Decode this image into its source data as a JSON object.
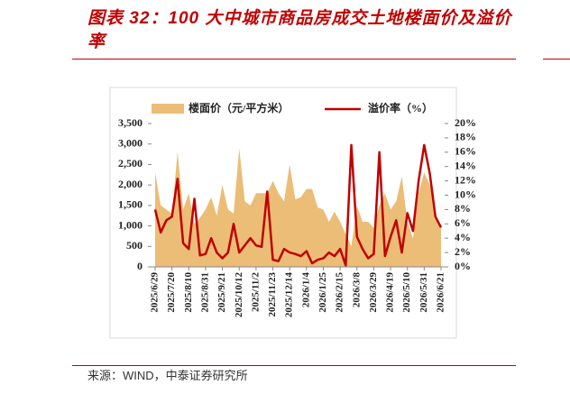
{
  "chart_data": {
    "type": "area-line",
    "title": "图表 32：100 大中城市商品房成交土地楼面价及溢价率",
    "source": "来源：WIND，中泰证券研究所",
    "categories": [
      "2025/6/29",
      null,
      null,
      "2025/7/20",
      null,
      null,
      "2025/8/10",
      null,
      null,
      "2025/8/31",
      null,
      null,
      "2025/9/21",
      null,
      null,
      "2025/10/12",
      null,
      null,
      "2025/11/2",
      null,
      null,
      "2025/11/23",
      null,
      null,
      "2025/12/14",
      null,
      null,
      "2026/1/4",
      null,
      null,
      "2026/1/25",
      null,
      null,
      "2026/2/15",
      null,
      null,
      "2026/3/8",
      null,
      null,
      "2026/3/29",
      null,
      null,
      "2026/4/19",
      null,
      null,
      "2026/5/10",
      null,
      null,
      "2026/5/31",
      null,
      null,
      "2026/6/21"
    ],
    "series": [
      {
        "name": "楼面价（元/平方米）",
        "color": "#ebbd76",
        "axis": "y",
        "values": [
          2300,
          1500,
          1400,
          1300,
          2800,
          1400,
          1800,
          1050,
          1200,
          1400,
          1700,
          1250,
          2000,
          1400,
          1300,
          2900,
          1600,
          1500,
          1800,
          1800,
          1800,
          2100,
          1800,
          1600,
          2500,
          1650,
          1700,
          1900,
          1900,
          1450,
          1400,
          1100,
          1350,
          1100,
          800,
          500,
          1500,
          1100,
          1100,
          950,
          1500,
          1800,
          1400,
          1600,
          2200,
          1100,
          700,
          1800,
          2300,
          2000,
          1300,
          1000
        ]
      },
      {
        "name": "溢价率（%）",
        "color": "#c00000",
        "axis": "y2",
        "values": [
          8.0,
          4.8,
          6.5,
          7.0,
          12.3,
          3.3,
          2.5,
          9.5,
          1.6,
          1.8,
          4.0,
          2.0,
          1.2,
          2.0,
          6.0,
          2.0,
          3.0,
          4.0,
          3.0,
          2.8,
          10.5,
          1.0,
          0.8,
          2.5,
          2.0,
          1.8,
          1.5,
          2.2,
          0.5,
          1.0,
          1.2,
          2.0,
          1.5,
          2.5,
          0.2,
          17.0,
          4.2,
          2.5,
          1.2,
          1.8,
          16.0,
          1.5,
          4.2,
          6.5,
          2.0,
          7.5,
          5.0,
          12.0,
          17.0,
          13.0,
          7.0,
          5.5
        ]
      }
    ],
    "ylim": [
      0,
      3500
    ],
    "yticks": [
      0,
      500,
      {
        "value": 1000,
        "label": "1,000"
      },
      {
        "value": 1500,
        "label": "1,500"
      },
      {
        "value": 2000,
        "label": "2,000"
      },
      {
        "value": 2500,
        "label": "2,500"
      },
      {
        "value": 3000,
        "label": "3,000"
      },
      {
        "value": 3500,
        "label": "3,500"
      }
    ],
    "y2lim": [
      0,
      20
    ],
    "y2ticks": [
      {
        "value": 0,
        "label": "0%"
      },
      {
        "value": 2,
        "label": "2%"
      },
      {
        "value": 4,
        "label": "4%"
      },
      {
        "value": 6,
        "label": "6%"
      },
      {
        "value": 8,
        "label": "8%"
      },
      {
        "value": 10,
        "label": "10%"
      },
      {
        "value": 12,
        "label": "12%"
      },
      {
        "value": 14,
        "label": "14%"
      },
      {
        "value": 16,
        "label": "16%"
      },
      {
        "value": 18,
        "label": "18%"
      },
      {
        "value": 20,
        "label": "20%"
      }
    ],
    "legend": "top"
  }
}
